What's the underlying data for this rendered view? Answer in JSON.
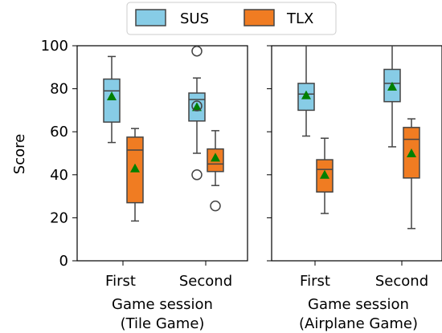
{
  "chart_data": {
    "type": "box",
    "ylabel": "Score",
    "ylim": [
      0,
      100
    ],
    "yticks": [
      "0",
      "20",
      "40",
      "60",
      "80",
      "100"
    ],
    "legend": {
      "placement": "top-center",
      "entries": [
        {
          "name": "SUS",
          "color": "#87cce6"
        },
        {
          "name": "TLX",
          "color": "#f07c22"
        }
      ]
    },
    "mean_marker_color": "#008000",
    "panels": [
      {
        "xlabel_line1": "Game session",
        "xlabel_line2": "(Tile Game)",
        "categories": [
          "First",
          "Second"
        ],
        "series": [
          {
            "name": "SUS",
            "boxes": [
              {
                "whisker_low": 55,
                "q1": 64.5,
                "median": 79,
                "q3": 84.5,
                "whisker_high": 95,
                "mean": 76.5,
                "outliers": []
              },
              {
                "whisker_low": 50,
                "q1": 65,
                "median": 75,
                "q3": 78,
                "whisker_high": 85,
                "mean": 71.5,
                "outliers": [
                  97.5,
                  72,
                  40
                ]
              }
            ]
          },
          {
            "name": "TLX",
            "boxes": [
              {
                "whisker_low": 18.5,
                "q1": 27,
                "median": 51.5,
                "q3": 57.5,
                "whisker_high": 61.5,
                "mean": 43,
                "outliers": []
              },
              {
                "whisker_low": 35,
                "q1": 41.5,
                "median": 45,
                "q3": 52,
                "whisker_high": 60.5,
                "mean": 48,
                "outliers": [
                  25.5
                ]
              }
            ]
          }
        ]
      },
      {
        "xlabel_line1": "Game session",
        "xlabel_line2": "(Airplane Game)",
        "categories": [
          "First",
          "Second"
        ],
        "series": [
          {
            "name": "SUS",
            "boxes": [
              {
                "whisker_low": 58,
                "q1": 70,
                "median": 77.5,
                "q3": 82.5,
                "whisker_high": 100,
                "mean": 77,
                "outliers": []
              },
              {
                "whisker_low": 53,
                "q1": 74,
                "median": 82.5,
                "q3": 89,
                "whisker_high": 100,
                "mean": 81,
                "outliers": []
              }
            ]
          },
          {
            "name": "TLX",
            "boxes": [
              {
                "whisker_low": 22,
                "q1": 32,
                "median": 42.5,
                "q3": 47,
                "whisker_high": 57,
                "mean": 40,
                "outliers": []
              },
              {
                "whisker_low": 15,
                "q1": 38.5,
                "median": 56.5,
                "q3": 62,
                "whisker_high": 66,
                "mean": 50,
                "outliers": []
              }
            ]
          }
        ]
      }
    ]
  }
}
